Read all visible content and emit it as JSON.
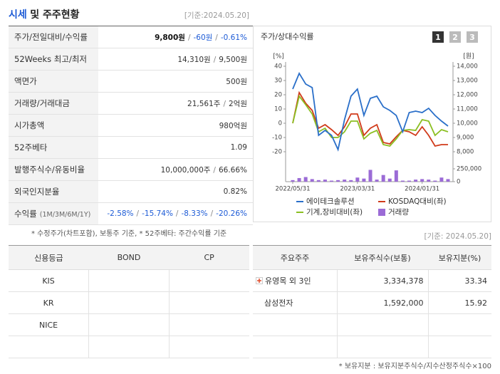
{
  "header": {
    "title_highlight": "시세",
    "title_rest": "및 주주현황",
    "date": "[기준:2024.05.20]"
  },
  "tones": {
    "strong": "#111111",
    "down": "#1d5bd6"
  },
  "price_table": {
    "separator": "/",
    "rows": [
      {
        "label": "주가/전일대비/수익률",
        "values": [
          "9,800원",
          "-60원",
          "-0.61%"
        ],
        "tones": [
          "strong",
          "down",
          "down"
        ]
      },
      {
        "label": "52Weeks 최고/최저",
        "values": [
          "14,310원",
          "9,500원"
        ]
      },
      {
        "label": "액면가",
        "values": [
          "500원"
        ]
      },
      {
        "label": "거래량/거래대금",
        "values": [
          "21,561주",
          "2억원"
        ]
      },
      {
        "label": "시가총액",
        "values": [
          "980억원"
        ]
      },
      {
        "label": "52주베타",
        "values": [
          "1.09"
        ]
      },
      {
        "label": "발행주식수/유동비율",
        "values": [
          "10,000,000주",
          "66.66%"
        ]
      },
      {
        "label": "외국인지분율",
        "values": [
          "0.82%"
        ]
      },
      {
        "label": "수익률",
        "label_note": "(1M/3M/6M/1Y)",
        "values": [
          "-2.58%",
          "-15.74%",
          "-8.33%",
          "-20.26%"
        ],
        "tones": [
          "down",
          "down",
          "down",
          "down"
        ]
      }
    ]
  },
  "footnote": "* 수정주가(차트포함), 보통주 기준, * 52주베타: 주간수익률 기준",
  "chart_tabs": [
    "1",
    "2",
    "3"
  ],
  "chart_data": {
    "type": "line",
    "title": "주가/상대수익률",
    "y_label": "[%]",
    "y2_label": "[원]",
    "categories": [
      "2022/05/31",
      null,
      null,
      null,
      null,
      null,
      null,
      null,
      null,
      null,
      "2023/03/31",
      null,
      null,
      null,
      null,
      null,
      null,
      null,
      null,
      null,
      "2024/01/31",
      null,
      null,
      null,
      null
    ],
    "ylim": [
      -20,
      40
    ],
    "yticks": [
      40,
      30,
      20,
      10,
      0,
      -10,
      -20
    ],
    "y2lim": [
      8000,
      14000
    ],
    "y2ticks": [
      {
        "value": 14000,
        "label": "14,000"
      },
      {
        "value": 13000,
        "label": "13,000"
      },
      {
        "value": 12000,
        "label": "12,000"
      },
      {
        "value": 11000,
        "label": "11,000"
      },
      {
        "value": 10000,
        "label": "10,000"
      },
      {
        "value": 9000,
        "label": "9,000"
      },
      {
        "value": 8000,
        "label": "8,000"
      }
    ],
    "y3lim": [
      0,
      250000
    ],
    "y3ticks": [
      {
        "value": 250000,
        "label": "250,000"
      },
      0
    ],
    "grid": false,
    "series": [
      {
        "name": "에이테크솔루션",
        "color": "#2a6fc9",
        "axis": "y2",
        "values": [
          12400,
          13500,
          12750,
          12500,
          9150,
          9500,
          9150,
          8150,
          10250,
          11900,
          12400,
          10550,
          11750,
          11900,
          11150,
          10900,
          10550,
          9400,
          10750,
          10850,
          10750,
          11050,
          10550,
          10150,
          9800
        ]
      },
      {
        "name": "KOSDAQ대비(좌)",
        "color": "#d03a1a",
        "values": [
          0,
          21.5,
          14,
          9,
          -3.5,
          -1,
          -4.5,
          -8.5,
          -2.5,
          6.5,
          6.5,
          -8.5,
          -3.5,
          -1,
          -13.5,
          -14.5,
          -9.5,
          -5,
          -6,
          -8.5,
          -2.5,
          -8.5,
          -16,
          -15,
          -15
        ]
      },
      {
        "name": "기계,장비대비(좌)",
        "color": "#8bbf22",
        "values": [
          0,
          19,
          13,
          6.5,
          -6,
          -3.5,
          -10,
          -10,
          -6,
          1.5,
          1.5,
          -11,
          -7,
          -5,
          -15,
          -16,
          -11,
          -5,
          -4.5,
          -5,
          2.5,
          1.5,
          -8.5,
          -4.5,
          -6
        ]
      },
      {
        "name": "거래량",
        "color": "#9b6bd6",
        "axis": "y3",
        "kind": "bar",
        "values": [
          30000,
          70000,
          90000,
          50000,
          30000,
          40000,
          20000,
          30000,
          40000,
          30000,
          80000,
          60000,
          230000,
          40000,
          130000,
          60000,
          220000,
          20000,
          20000,
          40000,
          50000,
          40000,
          20000,
          80000,
          50000
        ]
      }
    ]
  },
  "credit_table": {
    "columns": [
      "신용등급",
      "BOND",
      "CP"
    ],
    "rows": [
      [
        "KIS"
      ],
      [
        "KR"
      ],
      [
        "NICE"
      ]
    ]
  },
  "holders": {
    "date": "[기준: 2024.05.20]",
    "columns": [
      "주요주주",
      "보유주식수(보통)",
      "보유지분(%)"
    ],
    "rows": [
      [
        "유영목 외 3인",
        "3,334,378",
        "33.34"
      ],
      [
        "삼성전자",
        "1,592,000",
        "15.92"
      ]
    ],
    "note": "* 보유지분 : 보유지분주식수/지수산정주식수×100"
  }
}
